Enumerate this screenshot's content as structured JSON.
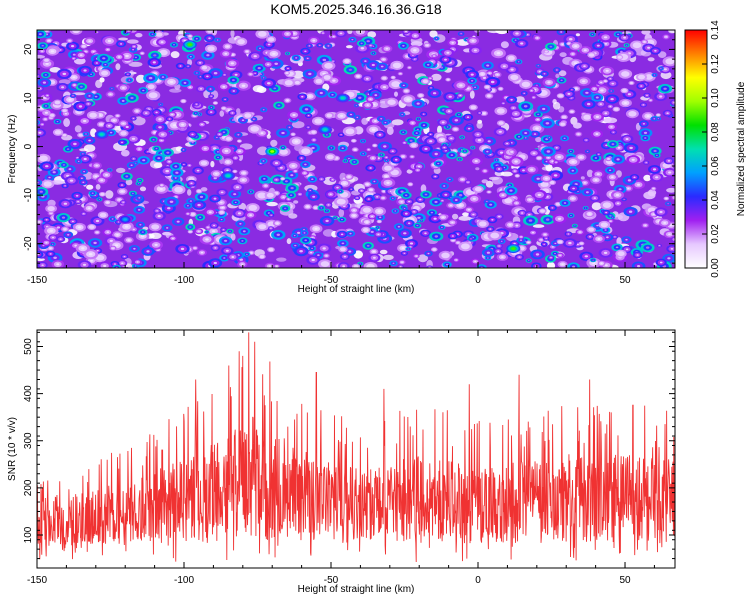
{
  "title": "KOM5.2025.346.16.36.G18",
  "chart_data": [
    {
      "type": "heatmap",
      "title": "KOM5.2025.346.16.36.G18",
      "xlabel": "Height of straight line (km)",
      "ylabel": "Frequency (Hz)",
      "xlim": [
        -150,
        67
      ],
      "ylim": [
        -25,
        24
      ],
      "x_ticks": [
        -150,
        -100,
        -50,
        0,
        50
      ],
      "y_ticks": [
        -20,
        -10,
        0,
        10,
        20
      ],
      "grid": false,
      "colorbar": {
        "label": "Normalized spectral amplitude",
        "range": [
          0.0,
          0.14
        ],
        "ticks": [
          "0.00",
          "0.02",
          "0.04",
          "0.06",
          "0.08",
          "0.10",
          "0.12",
          "0.14"
        ],
        "colors": [
          "#ffffff",
          "#e6c8ff",
          "#a020f0",
          "#2a2aff",
          "#00a0ff",
          "#00e0b0",
          "#00e000",
          "#a0ff00",
          "#ffff00",
          "#ff8000",
          "#ff0000"
        ]
      },
      "background_color": "#8a2be2",
      "description_values": {
        "typical_amplitude_range": [
          0.02,
          0.06
        ],
        "peak_amplitude": 0.1,
        "peak_locations": [
          {
            "x": -70,
            "y": -1,
            "value": 0.1
          },
          {
            "x": -98,
            "y": 21,
            "value": 0.09
          },
          {
            "x": 12,
            "y": -21,
            "value": 0.09
          },
          {
            "x": -52,
            "y": 3.5,
            "value": 0.07
          },
          {
            "x": -128,
            "y": 2.5,
            "value": 0.07
          },
          {
            "x": -46,
            "y": 10,
            "value": 0.07
          },
          {
            "x": -120,
            "y": -15,
            "value": 0.06
          },
          {
            "x": -85,
            "y": -6,
            "value": 0.07
          }
        ]
      }
    },
    {
      "type": "line",
      "xlabel": "Height of straight line (km)",
      "ylabel": "SNR (10 * v/v)",
      "xlim": [
        -150,
        67
      ],
      "ylim": [
        30,
        535
      ],
      "x_ticks": [
        -150,
        -100,
        -50,
        0,
        50
      ],
      "y_ticks": [
        100,
        200,
        300,
        400,
        500
      ],
      "grid": false,
      "series": [
        {
          "color": "#f03232",
          "mean_envelope": [
            {
              "x": -150,
              "low": 40,
              "high": 230
            },
            {
              "x": -130,
              "low": 50,
              "high": 260
            },
            {
              "x": -110,
              "low": 45,
              "high": 330
            },
            {
              "x": -90,
              "low": 40,
              "high": 420
            },
            {
              "x": -78,
              "low": 35,
              "high": 530
            },
            {
              "x": -60,
              "low": 45,
              "high": 400
            },
            {
              "x": -40,
              "low": 45,
              "high": 330
            },
            {
              "x": -20,
              "low": 40,
              "high": 380
            },
            {
              "x": 0,
              "low": 45,
              "high": 350
            },
            {
              "x": 20,
              "low": 40,
              "high": 380
            },
            {
              "x": 40,
              "low": 45,
              "high": 390
            },
            {
              "x": 67,
              "low": 40,
              "high": 370
            }
          ],
          "notable_peaks": [
            {
              "x": -78,
              "y": 530
            },
            {
              "x": -76,
              "y": 510
            },
            {
              "x": -80,
              "y": 480
            },
            {
              "x": -96,
              "y": 430
            },
            {
              "x": -55,
              "y": 445
            },
            {
              "x": 14,
              "y": 440
            },
            {
              "x": 38,
              "y": 430
            },
            {
              "x": -3,
              "y": 420
            },
            {
              "x": -32,
              "y": 410
            }
          ]
        }
      ]
    }
  ]
}
